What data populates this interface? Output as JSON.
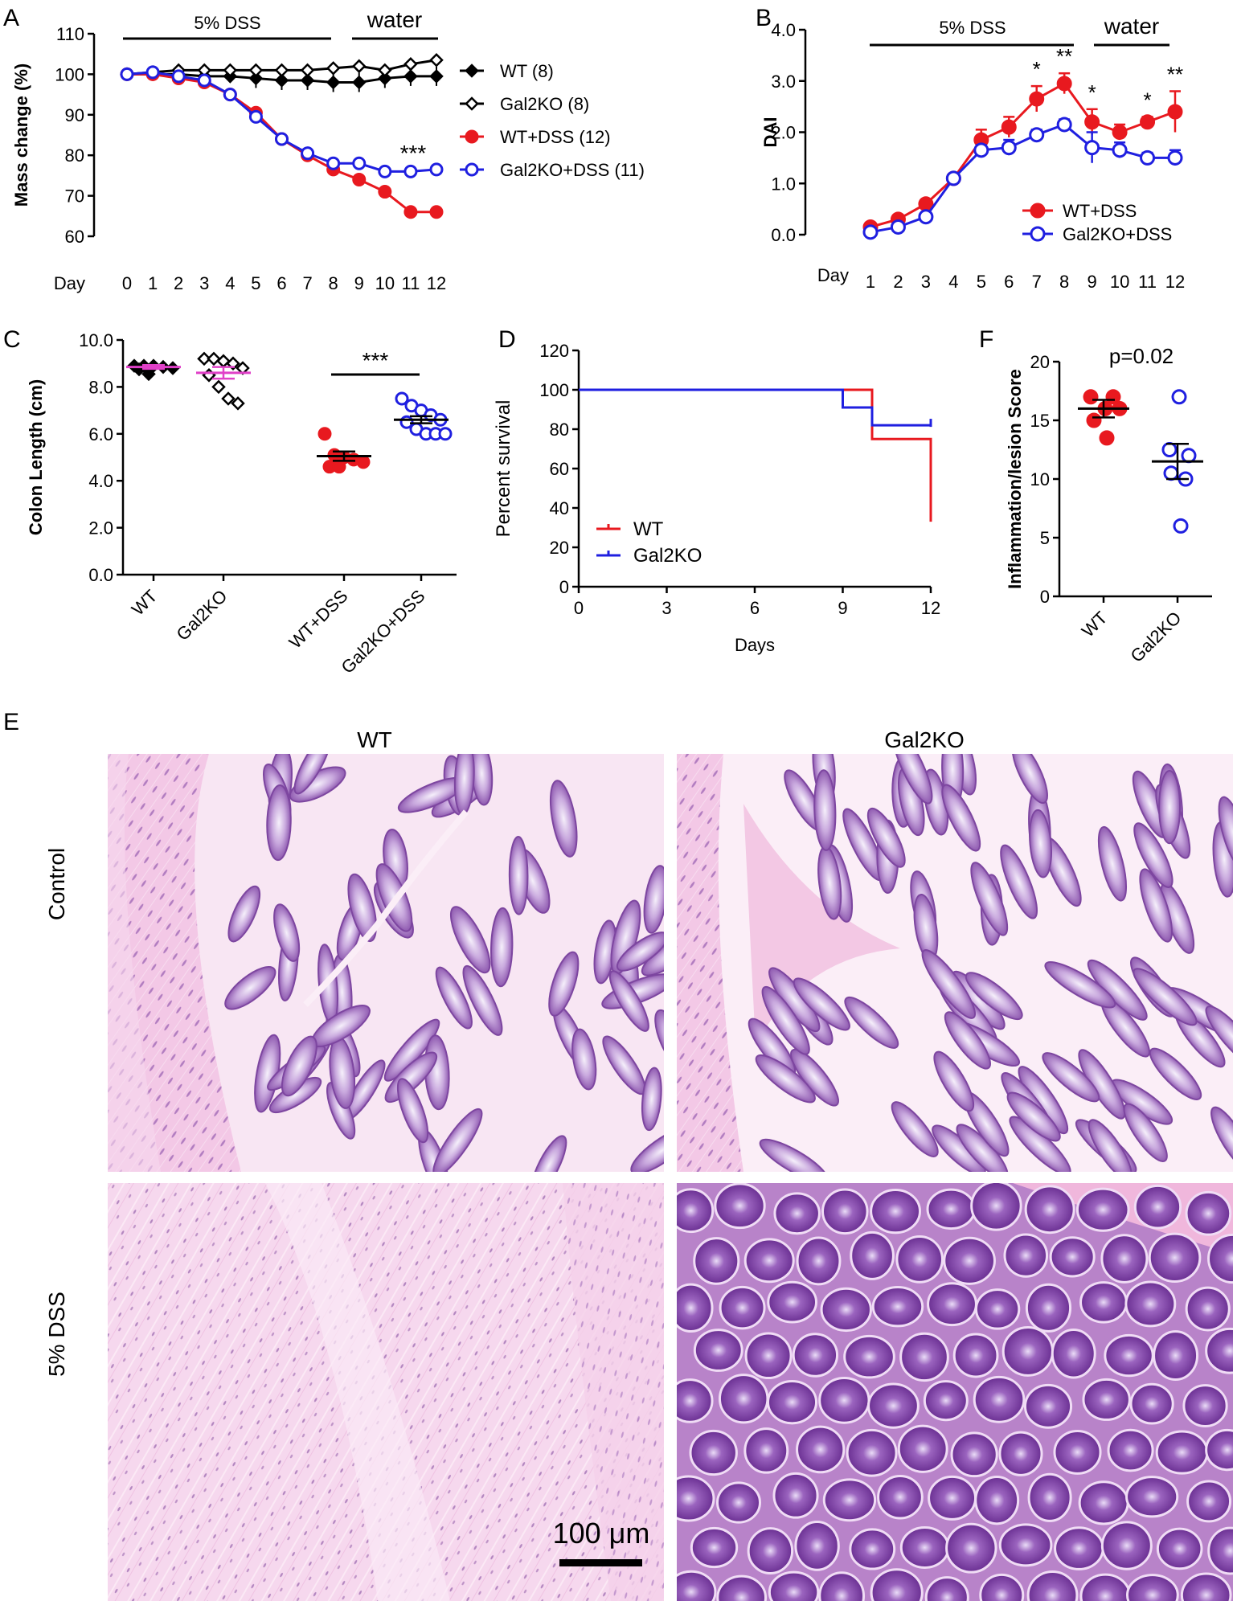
{
  "colors": {
    "wt": "#e8191f",
    "gal2ko": "#1f1fe0",
    "black": "#000000",
    "he_pink": "#f2c6e4",
    "he_purple": "#8a4fa8"
  },
  "panel_labels": {
    "a": "A",
    "b": "B",
    "c": "C",
    "d": "D",
    "e": "E",
    "f": "F"
  },
  "chart_data": [
    {
      "id": "A",
      "type": "line",
      "ylabel": "Mass change (%)",
      "xlabel": "Day",
      "x": [
        0,
        1,
        2,
        3,
        4,
        5,
        6,
        7,
        8,
        9,
        10,
        11,
        12
      ],
      "ylim": [
        60,
        110
      ],
      "yticks": [
        "60",
        "70",
        "80",
        "90",
        "100",
        "110"
      ],
      "bar_labels": {
        "dss": "5% DSS",
        "water": "water"
      },
      "annotation": "***",
      "series": [
        {
          "name": "WT (8)",
          "marker": "filled-diamond",
          "color": "#000000",
          "values": [
            100,
            100,
            100,
            99.5,
            99.5,
            99,
            98.5,
            98.5,
            98,
            98,
            99,
            99.5,
            99.5
          ]
        },
        {
          "name": "Gal2KO (8)",
          "marker": "open-diamond",
          "color": "#000000",
          "values": [
            100,
            100.5,
            101,
            101,
            101,
            101,
            101,
            101,
            101.5,
            102,
            101,
            102.5,
            103.5
          ]
        },
        {
          "name": "WT+DSS (12)",
          "marker": "filled-circle",
          "color": "#e8191f",
          "values": [
            100,
            100,
            99,
            98,
            95,
            90.5,
            84,
            80,
            76.5,
            74,
            71,
            66,
            66
          ]
        },
        {
          "name": "Gal2KO+DSS (11)",
          "marker": "open-circle",
          "color": "#1f1fe0",
          "values": [
            100,
            100.5,
            99.5,
            98.5,
            95,
            89.5,
            84,
            80.5,
            78,
            78,
            76,
            76,
            76.5
          ]
        }
      ]
    },
    {
      "id": "B",
      "type": "line",
      "ylabel": "DAI",
      "xlabel": "Day",
      "x": [
        1,
        2,
        3,
        4,
        5,
        6,
        7,
        8,
        9,
        10,
        11,
        12
      ],
      "ylim": [
        0,
        4
      ],
      "yticks": [
        "0.0",
        "1.0",
        "2.0",
        "3.0",
        "4.0"
      ],
      "bar_labels": {
        "dss": "5% DSS",
        "water": "water"
      },
      "annotations": [
        {
          "x": 7,
          "text": "*"
        },
        {
          "x": 8,
          "text": "**"
        },
        {
          "x": 9,
          "text": "*"
        },
        {
          "x": 11,
          "text": "*"
        },
        {
          "x": 12,
          "text": "**"
        }
      ],
      "series": [
        {
          "name": "WT+DSS",
          "marker": "filled-circle",
          "color": "#e8191f",
          "values": [
            0.15,
            0.3,
            0.6,
            1.1,
            1.85,
            2.1,
            2.65,
            2.95,
            2.2,
            2.0,
            2.2,
            2.4
          ],
          "err": [
            0.05,
            0.05,
            0.08,
            0.08,
            0.2,
            0.2,
            0.25,
            0.2,
            0.25,
            0.15,
            0.1,
            0.4
          ]
        },
        {
          "name": "Gal2KO+DSS",
          "marker": "open-circle",
          "color": "#1f1fe0",
          "values": [
            0.05,
            0.15,
            0.35,
            1.1,
            1.65,
            1.7,
            1.95,
            2.15,
            1.7,
            1.65,
            1.5,
            1.5
          ],
          "err": [
            0.05,
            0.05,
            0.05,
            0.08,
            0.1,
            0.15,
            0.1,
            0.1,
            0.3,
            0.15,
            0.1,
            0.15
          ]
        }
      ]
    },
    {
      "id": "C",
      "type": "scatter",
      "ylabel": "Colon Length (cm)",
      "categories": [
        "WT",
        "Gal2KO",
        "WT+DSS",
        "Gal2KO+DSS"
      ],
      "ylim": [
        0,
        10
      ],
      "yticks": [
        "0.0",
        "2.0",
        "4.0",
        "6.0",
        "8.0",
        "10.0"
      ],
      "annotation": "***",
      "groups": [
        {
          "category": "WT",
          "mean": 8.85,
          "sem": 0.08,
          "marker": "filled-diamond",
          "color": "#000000",
          "points": [
            8.9,
            8.9,
            8.9,
            8.85,
            8.8,
            8.75,
            8.55
          ]
        },
        {
          "category": "Gal2KO",
          "mean": 8.6,
          "sem": 0.25,
          "marker": "open-diamond",
          "color": "#000000",
          "points": [
            9.2,
            9.2,
            9.1,
            9.0,
            8.8,
            8.5,
            8.0,
            7.5,
            7.3
          ]
        },
        {
          "category": "WT+DSS",
          "mean": 5.05,
          "sem": 0.2,
          "marker": "filled-circle",
          "color": "#e8191f",
          "points": [
            6.0,
            5.1,
            5.0,
            4.9,
            4.8,
            4.6,
            4.6
          ]
        },
        {
          "category": "Gal2KO+DSS",
          "mean": 6.6,
          "sem": 0.15,
          "marker": "open-circle",
          "color": "#1f1fe0",
          "points": [
            7.5,
            7.2,
            7.0,
            6.8,
            6.6,
            6.5,
            6.2,
            6.0,
            6.0,
            6.0
          ]
        }
      ]
    },
    {
      "id": "D",
      "type": "line",
      "ylabel": "Percent survival",
      "xlabel": "Days",
      "xlim": [
        0,
        12
      ],
      "xticks": [
        "0",
        "3",
        "6",
        "9",
        "12"
      ],
      "ylim": [
        0,
        120
      ],
      "yticks": [
        "0",
        "20",
        "40",
        "60",
        "80",
        "100",
        "120"
      ],
      "series": [
        {
          "name": "WT",
          "color": "#e8191f",
          "steps": [
            [
              0,
              100
            ],
            [
              10,
              100
            ],
            [
              10,
              75
            ],
            [
              12,
              75
            ],
            [
              12,
              33
            ]
          ]
        },
        {
          "name": "Gal2KO",
          "color": "#1f1fe0",
          "steps": [
            [
              0,
              100
            ],
            [
              9,
              100
            ],
            [
              9,
              91
            ],
            [
              10,
              91
            ],
            [
              10,
              82
            ],
            [
              12,
              82
            ]
          ]
        }
      ]
    },
    {
      "id": "F",
      "type": "scatter",
      "ylabel": "Inflammation/lesion Score",
      "categories": [
        "WT",
        "Gal2KO"
      ],
      "ylim": [
        0,
        20
      ],
      "yticks": [
        "0",
        "5",
        "10",
        "15",
        "20"
      ],
      "annotation": "p=0.02",
      "groups": [
        {
          "category": "WT",
          "mean": 16.0,
          "sem": 0.75,
          "marker": "filled-circle",
          "color": "#e8191f",
          "points": [
            17,
            17,
            16,
            16,
            15,
            13.5
          ]
        },
        {
          "category": "Gal2KO",
          "mean": 11.5,
          "sem": 1.5,
          "marker": "open-circle",
          "color": "#1f1fe0",
          "points": [
            17,
            12.5,
            12,
            10.5,
            10,
            6
          ]
        }
      ]
    }
  ],
  "histology": {
    "col_labels": [
      "WT",
      "Gal2KO"
    ],
    "row_labels": [
      "Control",
      "5% DSS"
    ],
    "scale_bar": "100 μm"
  }
}
